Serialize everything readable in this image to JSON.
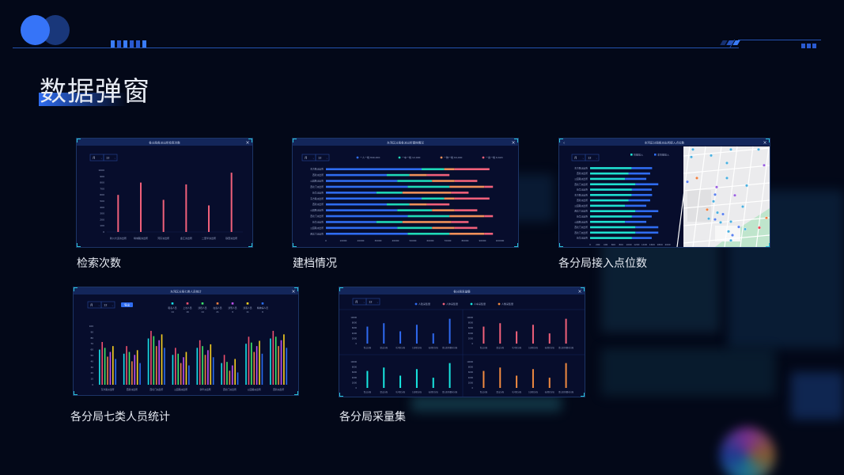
{
  "slide": {
    "title": "数据弹窗"
  },
  "colors": {
    "background": "#030818",
    "accent": "#2f6cf0",
    "panel": "#070d2c",
    "panel_border": "#1c3466"
  },
  "icons": {
    "close": "close-icon",
    "back": "chevron-left-icon",
    "dropdown": "chevron-down-icon",
    "map_pin": "map-pin-icon"
  },
  "panels": [
    {
      "caption": "检索次数",
      "title": "各分局各派出所检索次数",
      "filters": [
        "月",
        "12"
      ]
    },
    {
      "caption": "建档情况",
      "title": "东河区分局各派出所建档情况",
      "filters": [
        "月",
        "12"
      ]
    },
    {
      "caption": "各分局接入点位数",
      "title": "东河区分局各派出所接入点位数",
      "filters": [
        "月",
        "12"
      ]
    },
    {
      "caption": "各分局七类人员统计",
      "title": "东河区分局七类人员统计",
      "filters": [
        "月",
        "12"
      ],
      "button": "导出"
    },
    {
      "caption": "各分局采量集",
      "title": "各分局采量集",
      "filters": [
        "月",
        "12"
      ]
    }
  ],
  "chart_data": [
    {
      "type": "bar",
      "categories": [
        "新川大道派出所",
        "绵城路派出所",
        "河东派出所",
        "金江派出所",
        "二里半派出所",
        "铁西派出所"
      ],
      "values": [
        600,
        800,
        520,
        770,
        430,
        960
      ],
      "ylim": [
        0,
        1000
      ],
      "yticks": [
        0,
        100,
        200,
        300,
        400,
        500,
        600,
        700,
        800,
        900,
        1000
      ],
      "color": "#f0607a"
    },
    {
      "type": "bar",
      "orientation": "horizontal",
      "stacked": true,
      "categories": [
        "东方路派出所",
        "西新派出所",
        "公园路派出所",
        "西北门派出所",
        "新华派出所",
        "东方路派出所",
        "西新派出所",
        "公园路派出所",
        "西北门派出所",
        "新华派出所",
        "公园路派出所",
        "西北门派出所"
      ],
      "series": [
        {
          "name": "一人一档",
          "total": "840,000",
          "color": "#2f6cf0",
          "values": [
            55000,
            35000,
            41000,
            47000,
            29000,
            55000,
            35000,
            41000,
            47000,
            29000,
            41000,
            47000
          ]
        },
        {
          "name": "一车一档",
          "total": "12,000",
          "color": "#1fd8b8",
          "values": [
            13000,
            13000,
            20000,
            24000,
            15000,
            13000,
            13000,
            20000,
            24000,
            15000,
            20000,
            24000
          ]
        },
        {
          "name": "一物一档",
          "total": "64,000",
          "color": "#f0905a",
          "values": [
            6000,
            10000,
            13000,
            20000,
            28000,
            6000,
            10000,
            13000,
            20000,
            28000,
            13000,
            20000
          ]
        },
        {
          "name": "一案一档",
          "total": "6,620",
          "color": "#f0607a",
          "values": [
            20000,
            13000,
            13000,
            5000,
            10000,
            20000,
            13000,
            13000,
            5000,
            10000,
            13000,
            5000
          ]
        }
      ],
      "xlim": [
        0,
        100000
      ],
      "xticks": [
        0,
        10000,
        20000,
        30000,
        40000,
        50000,
        60000,
        70000,
        80000,
        90000,
        100000
      ]
    },
    {
      "type": "bar",
      "orientation": "horizontal",
      "stacked": true,
      "categories": [
        "东方路派出所",
        "西新派出所",
        "公园路派出所",
        "西北门派出所",
        "新华派出所",
        "东方路派出所",
        "西新派出所",
        "公园路派出所",
        "西北门派出所",
        "新华派出所",
        "公园路派出所",
        "西北门派出所",
        "西北门派出所",
        "新华派出所"
      ],
      "series": [
        {
          "name": "智能接入",
          "color": "#1fe0d0",
          "values": [
            1070,
            990,
            900,
            1170,
            1080,
            1070,
            990,
            900,
            1170,
            1080,
            900,
            1170,
            1170,
            1080
          ]
        },
        {
          "name": "非智能接入",
          "color": "#2f6cf0",
          "values": [
            530,
            560,
            550,
            590,
            510,
            530,
            560,
            550,
            590,
            510,
            550,
            590,
            590,
            510
          ]
        }
      ],
      "xlim": [
        0,
        2000
      ],
      "xticks": [
        0,
        200,
        400,
        600,
        800,
        1000,
        1200,
        1400,
        1600,
        1800,
        2000
      ]
    },
    {
      "type": "bar",
      "grouped": true,
      "categories": [
        "东方路派出所",
        "西新派出所",
        "西北门派出所",
        "公园路派出所",
        "新华派出所",
        "西北门派出所",
        "公园路派出所",
        "西新派出所"
      ],
      "series": [
        {
          "name": "吸毒人员",
          "count": "14",
          "color": "#18e0e8",
          "values": [
            60,
            53,
            79,
            51,
            63,
            37,
            70,
            79
          ]
        },
        {
          "name": "上访人员",
          "count": "16",
          "color": "#f0506e",
          "values": [
            73,
            66,
            92,
            63,
            76,
            51,
            82,
            92
          ]
        },
        {
          "name": "涉稳人员",
          "count": "14",
          "color": "#3ee86a",
          "values": [
            63,
            56,
            83,
            53,
            66,
            39,
            72,
            82
          ]
        },
        {
          "name": "在逃人员",
          "count": "21",
          "color": "#f08040",
          "values": [
            48,
            40,
            66,
            37,
            51,
            24,
            56,
            66
          ]
        },
        {
          "name": "涉恐人员",
          "count": "9",
          "color": "#c050f0",
          "values": [
            56,
            51,
            76,
            47,
            59,
            33,
            66,
            76
          ]
        },
        {
          "name": "涉黑人员",
          "count": "11",
          "color": "#f8d020",
          "values": [
            66,
            59,
            86,
            56,
            69,
            44,
            75,
            86
          ]
        },
        {
          "name": "精神病人员",
          "count": "6",
          "color": "#2a6cf0",
          "values": [
            44,
            37,
            63,
            33,
            47,
            21,
            53,
            63
          ]
        }
      ],
      "ylim": [
        0,
        100
      ],
      "yticks": [
        0,
        10,
        20,
        30,
        40,
        50,
        60,
        70,
        80,
        90,
        100
      ]
    },
    {
      "type": "bar",
      "small_multiples": true,
      "categories": [
        "青山分局",
        "昆山分局",
        "东河区分局",
        "九原区分局",
        "石拐区分局",
        "青山区新都市分局"
      ],
      "series": [
        {
          "name": "人脸采集量",
          "color": "#2f6af0",
          "values": [
            6500,
            7800,
            4700,
            7200,
            3900,
            9500
          ]
        },
        {
          "name": "人体采集量",
          "color": "#f0607a",
          "values": [
            6500,
            7800,
            4700,
            7200,
            3900,
            9500
          ]
        },
        {
          "name": "人车采集量",
          "color": "#18e8e0",
          "values": [
            6500,
            7800,
            4700,
            7200,
            3900,
            9500
          ]
        },
        {
          "name": "人像采集量",
          "color": "#f08a40",
          "values": [
            6500,
            7800,
            4700,
            7200,
            3900,
            9500
          ]
        }
      ],
      "ylim": [
        0,
        10000
      ],
      "yticks": [
        0,
        2000,
        4000,
        6000,
        8000,
        10000
      ]
    }
  ]
}
